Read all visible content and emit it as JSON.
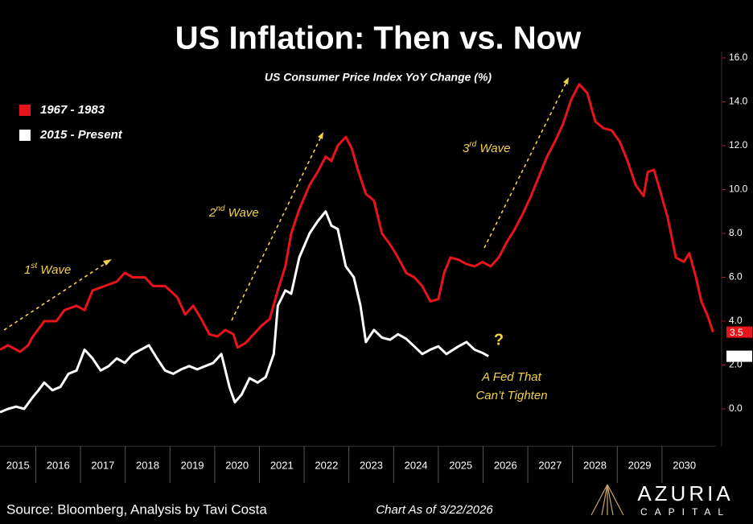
{
  "chart_data": {
    "type": "line",
    "title": "US Inflation: Then vs. Now",
    "subtitle": "US Consumer Price Index YoY Change (%)",
    "xlim": [
      2015.2,
      2031.2
    ],
    "xticks": [
      2015,
      2016,
      2017,
      2018,
      2019,
      2020,
      2021,
      2022,
      2023,
      2024,
      2025,
      2026,
      2027,
      2028,
      2029,
      2030
    ],
    "ylim": [
      -1.7,
      16.3
    ],
    "yticks": [
      {
        "value": 0,
        "label": "0.0"
      },
      {
        "value": 2,
        "label": "2.0"
      },
      {
        "value": 4,
        "label": "4.0"
      },
      {
        "value": 6,
        "label": "6.0"
      },
      {
        "value": 8,
        "label": "8.0"
      },
      {
        "value": 10,
        "label": "10.0"
      },
      {
        "value": 12,
        "label": "12.0"
      },
      {
        "value": 14,
        "label": "14.0"
      },
      {
        "value": 16,
        "label": "16.0"
      }
    ],
    "legend": "top-left",
    "series": [
      {
        "name": "1967 - 1983",
        "color": "#e8141b",
        "x": [
          2015.2,
          2015.38,
          2015.65,
          2015.83,
          2015.92,
          2016.19,
          2016.46,
          2016.64,
          2016.91,
          2017.09,
          2017.27,
          2017.54,
          2017.81,
          2017.99,
          2018.17,
          2018.44,
          2018.62,
          2018.89,
          2019.16,
          2019.34,
          2019.52,
          2019.7,
          2019.88,
          2020.06,
          2020.24,
          2020.42,
          2020.51,
          2020.69,
          2020.87,
          2021.05,
          2021.23,
          2021.41,
          2021.58,
          2021.71,
          2021.89,
          2022.12,
          2022.3,
          2022.48,
          2022.61,
          2022.75,
          2022.93,
          2023.06,
          2023.2,
          2023.38,
          2023.56,
          2023.74,
          2023.92,
          2024.1,
          2024.28,
          2024.46,
          2024.64,
          2024.82,
          2025.0,
          2025.13,
          2025.27,
          2025.45,
          2025.63,
          2025.81,
          2025.99,
          2026.17,
          2026.35,
          2026.53,
          2026.71,
          2026.89,
          2027.07,
          2027.25,
          2027.43,
          2027.61,
          2027.79,
          2027.97,
          2028.15,
          2028.33,
          2028.51,
          2028.69,
          2028.87,
          2029.05,
          2029.23,
          2029.41,
          2029.59,
          2029.68,
          2029.82,
          2029.95,
          2030.13,
          2030.31,
          2030.49,
          2030.61,
          2030.76,
          2030.88,
          2031.03,
          2031.14
        ],
        "values": [
          2.7,
          2.9,
          2.6,
          2.9,
          3.25,
          4.0,
          4.0,
          4.5,
          4.7,
          4.5,
          5.4,
          5.6,
          5.8,
          6.2,
          6.0,
          6.0,
          5.6,
          5.6,
          5.1,
          4.3,
          4.7,
          4.1,
          3.4,
          3.3,
          3.6,
          3.4,
          2.8,
          3.0,
          3.4,
          3.8,
          4.1,
          5.4,
          6.5,
          8.0,
          9.1,
          10.2,
          10.8,
          11.5,
          11.3,
          12.0,
          12.4,
          11.9,
          10.9,
          9.8,
          9.5,
          8.0,
          7.5,
          6.9,
          6.2,
          6.0,
          5.6,
          4.9,
          5.0,
          6.2,
          6.9,
          6.8,
          6.6,
          6.5,
          6.7,
          6.5,
          6.9,
          7.6,
          8.2,
          8.9,
          9.7,
          10.6,
          11.5,
          12.2,
          13.0,
          14.1,
          14.8,
          14.4,
          13.1,
          12.8,
          12.7,
          12.2,
          11.3,
          10.2,
          9.7,
          10.8,
          10.9,
          10.0,
          8.7,
          6.9,
          6.7,
          7.1,
          6.0,
          4.9,
          4.2,
          3.5
        ]
      },
      {
        "name": "2015 - Present",
        "color": "#ffffff",
        "x": [
          2015.2,
          2015.38,
          2015.56,
          2015.74,
          2015.92,
          2016.06,
          2016.19,
          2016.37,
          2016.55,
          2016.73,
          2016.91,
          2017.09,
          2017.27,
          2017.45,
          2017.63,
          2017.81,
          2017.99,
          2018.17,
          2018.35,
          2018.53,
          2018.71,
          2018.89,
          2019.07,
          2019.25,
          2019.43,
          2019.61,
          2019.79,
          2019.97,
          2020.15,
          2020.33,
          2020.45,
          2020.6,
          2020.78,
          2020.96,
          2021.14,
          2021.32,
          2021.41,
          2021.58,
          2021.71,
          2021.89,
          2022.12,
          2022.3,
          2022.48,
          2022.61,
          2022.75,
          2022.93,
          2023.11,
          2023.26,
          2023.38,
          2023.56,
          2023.74,
          2023.92,
          2024.1,
          2024.28,
          2024.46,
          2024.64,
          2024.82,
          2025.0,
          2025.18,
          2025.45,
          2025.63,
          2025.81,
          2025.99,
          2026.12
        ],
        "values": [
          -0.15,
          0.0,
          0.1,
          0.0,
          0.5,
          0.85,
          1.2,
          0.85,
          1.0,
          1.6,
          1.75,
          2.7,
          2.3,
          1.75,
          1.95,
          2.3,
          2.1,
          2.5,
          2.7,
          2.9,
          2.3,
          1.75,
          1.6,
          1.8,
          1.95,
          1.8,
          1.95,
          2.1,
          2.5,
          1.0,
          0.3,
          0.65,
          1.4,
          1.2,
          1.45,
          2.5,
          4.7,
          5.4,
          5.25,
          6.9,
          8.0,
          8.55,
          9.0,
          8.35,
          8.2,
          6.5,
          6.0,
          4.7,
          3.05,
          3.6,
          3.25,
          3.15,
          3.4,
          3.2,
          2.85,
          2.5,
          2.7,
          2.85,
          2.5,
          2.85,
          3.05,
          2.7,
          2.55,
          2.4
        ]
      }
    ],
    "annotations": [
      {
        "parts": [
          "1",
          "st",
          " Wave"
        ]
      },
      {
        "parts": [
          "2",
          "nd",
          " Wave"
        ]
      },
      {
        "parts": [
          "3",
          "rd",
          " Wave"
        ]
      },
      {
        "lines": [
          "?"
        ]
      },
      {
        "lines": [
          "A Fed That",
          "Can’t Tighten"
        ]
      }
    ],
    "source": "Source: Bloomberg, Analysis by Tavi Costa",
    "as_of": "Chart As of 3/22/2026",
    "logo": {
      "name": "AZURIA",
      "sub": "CAPITAL"
    }
  }
}
